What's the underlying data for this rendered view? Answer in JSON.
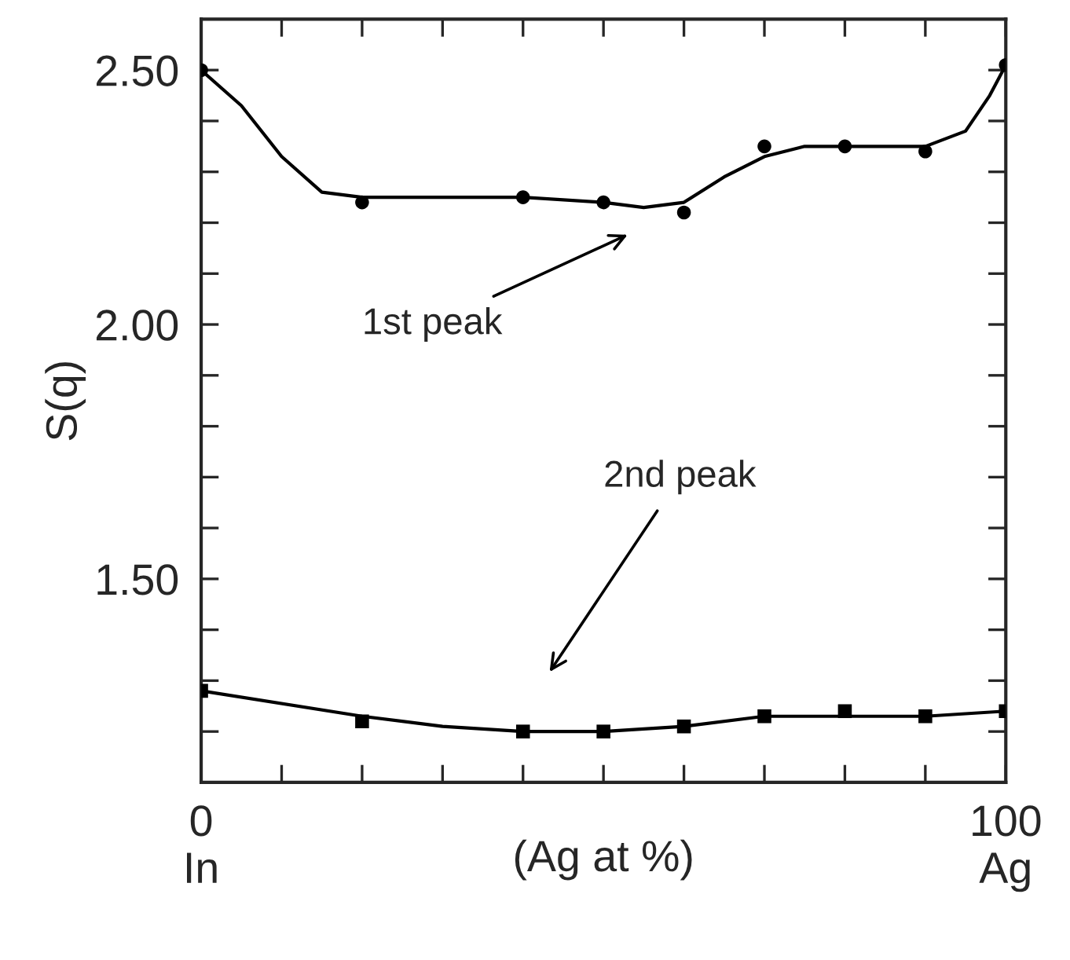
{
  "chart_data": {
    "type": "scatter",
    "ylabel": "S(q)",
    "xlabel": "(Ag at %)",
    "xlim": [
      0,
      100
    ],
    "ylim": [
      1.1,
      2.6
    ],
    "xticks": [
      {
        "value": 0,
        "label": "0\nIn"
      },
      {
        "value": 10,
        "label": null
      },
      {
        "value": 20,
        "label": null
      },
      {
        "value": 30,
        "label": null
      },
      {
        "value": 40,
        "label": null
      },
      {
        "value": 50,
        "label": null
      },
      {
        "value": 60,
        "label": null
      },
      {
        "value": 70,
        "label": null
      },
      {
        "value": 80,
        "label": null
      },
      {
        "value": 90,
        "label": null
      },
      {
        "value": 100,
        "label": "100\nAg"
      }
    ],
    "yticks": [
      {
        "value": 1.2,
        "label": null
      },
      {
        "value": 1.3,
        "label": null
      },
      {
        "value": 1.4,
        "label": null
      },
      {
        "value": 1.5,
        "label": "1.50"
      },
      {
        "value": 1.6,
        "label": null
      },
      {
        "value": 1.7,
        "label": null
      },
      {
        "value": 1.8,
        "label": null
      },
      {
        "value": 1.9,
        "label": null
      },
      {
        "value": 2.0,
        "label": "2.00"
      },
      {
        "value": 2.1,
        "label": null
      },
      {
        "value": 2.2,
        "label": null
      },
      {
        "value": 2.3,
        "label": null
      },
      {
        "value": 2.4,
        "label": null
      },
      {
        "value": 2.5,
        "label": "2.50"
      }
    ],
    "grid": false,
    "series": [
      {
        "marker": "circle",
        "color": "#000000",
        "x": [
          0,
          20,
          40,
          50,
          60,
          70,
          80,
          90,
          100
        ],
        "values": [
          2.5,
          2.24,
          2.25,
          2.24,
          2.22,
          2.35,
          2.35,
          2.34,
          2.51
        ]
      },
      {
        "type": "line",
        "line_style": "solid",
        "marker": "none",
        "color": "#000000",
        "x": [
          0,
          5,
          10,
          15,
          20,
          30,
          40,
          50,
          55,
          60,
          65,
          70,
          75,
          80,
          90,
          95,
          98,
          100
        ],
        "values": [
          2.5,
          2.43,
          2.33,
          2.26,
          2.25,
          2.25,
          2.25,
          2.24,
          2.23,
          2.24,
          2.29,
          2.33,
          2.35,
          2.35,
          2.35,
          2.38,
          2.45,
          2.51
        ]
      },
      {
        "marker": "square",
        "color": "#000000",
        "x": [
          0,
          20,
          40,
          50,
          60,
          70,
          80,
          90,
          100
        ],
        "values": [
          1.28,
          1.22,
          1.2,
          1.2,
          1.21,
          1.23,
          1.24,
          1.23,
          1.24
        ]
      },
      {
        "type": "line",
        "line_style": "solid",
        "marker": "none",
        "color": "#000000",
        "x": [
          0,
          20,
          30,
          40,
          50,
          60,
          70,
          80,
          90,
          100
        ],
        "values": [
          1.28,
          1.23,
          1.21,
          1.2,
          1.2,
          1.21,
          1.23,
          1.23,
          1.23,
          1.24
        ]
      }
    ],
    "annotations": [
      "1st peak",
      "2nd peak"
    ]
  }
}
